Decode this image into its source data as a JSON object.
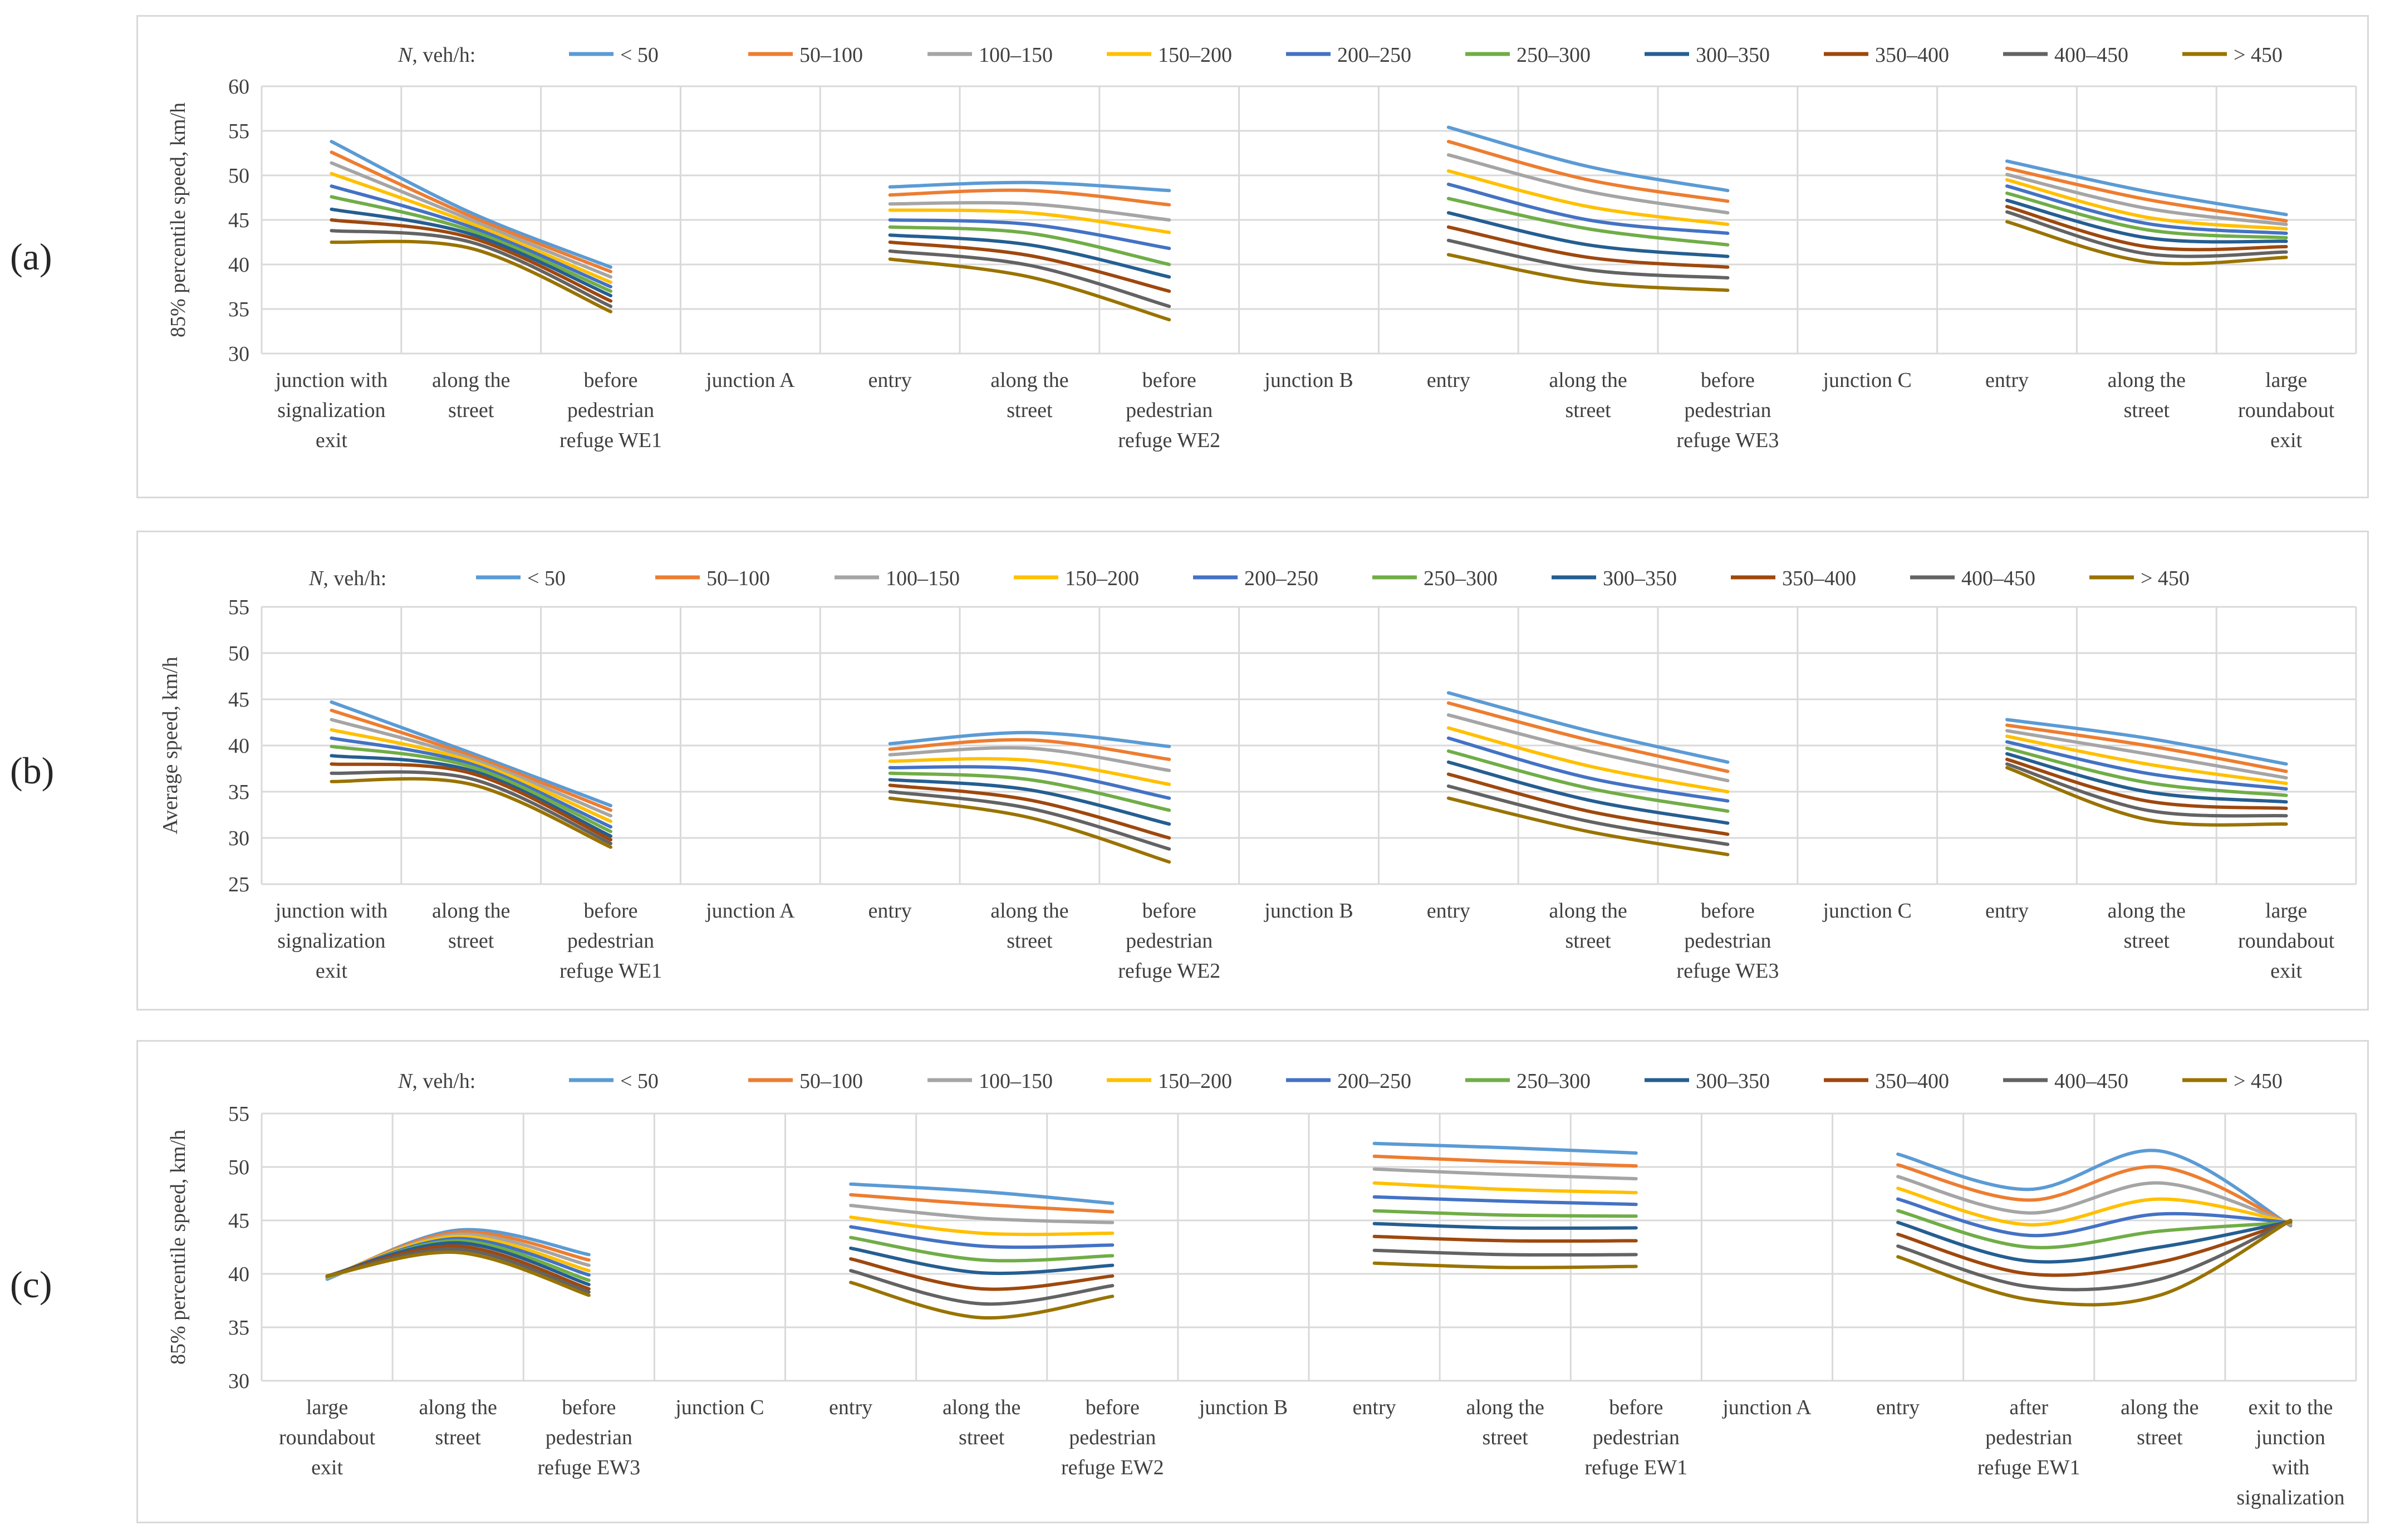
{
  "legend": {
    "title_var": "N",
    "title_unit": ", veh/h:",
    "entries": [
      "< 50",
      "50–100",
      "100–150",
      "150–200",
      "200–250",
      "250–300",
      "300–350",
      "350–400",
      "400–450",
      "> 450"
    ],
    "colors": [
      "#5b9bd5",
      "#ed7d31",
      "#a5a5a5",
      "#ffc000",
      "#4472c4",
      "#70ad47",
      "#255e91",
      "#9e480e",
      "#636363",
      "#997300"
    ]
  },
  "chart_data": [
    {
      "type": "line",
      "panel_label": "(a)",
      "ylabel": "85% percentile speed, km/h",
      "ylim": [
        30,
        60
      ],
      "yticks": [
        30,
        35,
        40,
        45,
        50,
        55,
        60
      ],
      "categories": [
        "junction with signalization exit",
        "along the street",
        "before pedestrian refuge WE1",
        "junction A",
        "entry",
        "along the street",
        "before pedestrian refuge WE2",
        "junction B",
        "entry",
        "along the street",
        "before pedestrian refuge WE3",
        "junction C",
        "entry",
        "along the street",
        "large roundabout exit"
      ],
      "category_lines": [
        [
          "junction with",
          "signalization",
          "exit"
        ],
        [
          "along the",
          "street"
        ],
        [
          "before",
          "pedestrian",
          "refuge WE1"
        ],
        [
          "junction A"
        ],
        [
          "entry"
        ],
        [
          "along the",
          "street"
        ],
        [
          "before",
          "pedestrian",
          "refuge WE2"
        ],
        [
          "junction B"
        ],
        [
          "entry"
        ],
        [
          "along the",
          "street"
        ],
        [
          "before",
          "pedestrian",
          "refuge WE3"
        ],
        [
          "junction C"
        ],
        [
          "entry"
        ],
        [
          "along the",
          "street"
        ],
        [
          "large",
          "roundabout",
          "exit"
        ]
      ],
      "segments": [
        [
          0,
          2
        ],
        [
          4,
          6
        ],
        [
          8,
          10
        ],
        [
          12,
          14
        ]
      ],
      "series": [
        {
          "name": "< 50",
          "values": [
            53.8,
            45.8,
            39.7,
            null,
            48.7,
            49.2,
            48.3,
            null,
            55.4,
            51.0,
            48.3,
            null,
            51.6,
            48.2,
            45.6
          ]
        },
        {
          "name": "50–100",
          "values": [
            52.6,
            45.4,
            39.2,
            null,
            47.8,
            48.3,
            46.7,
            null,
            53.8,
            49.5,
            47.1,
            null,
            50.8,
            47.3,
            44.9
          ]
        },
        {
          "name": "100–150",
          "values": [
            51.4,
            45.0,
            38.6,
            null,
            46.8,
            46.8,
            45.0,
            null,
            52.3,
            48.2,
            45.8,
            null,
            50.1,
            46.3,
            44.5
          ]
        },
        {
          "name": "150–200",
          "values": [
            50.2,
            44.6,
            38.0,
            null,
            46.1,
            45.8,
            43.6,
            null,
            50.5,
            46.5,
            44.5,
            null,
            49.5,
            45.3,
            44.0
          ]
        },
        {
          "name": "200–250",
          "values": [
            48.8,
            44.2,
            37.5,
            null,
            45.0,
            44.5,
            41.8,
            null,
            49.0,
            45.0,
            43.5,
            null,
            48.8,
            44.6,
            43.5
          ]
        },
        {
          "name": "250–300",
          "values": [
            47.6,
            43.8,
            37.0,
            null,
            44.2,
            43.5,
            40.0,
            null,
            47.4,
            44.0,
            42.2,
            null,
            48.0,
            43.9,
            43.0
          ]
        },
        {
          "name": "300–350",
          "values": [
            46.2,
            43.4,
            36.5,
            null,
            43.3,
            42.2,
            38.6,
            null,
            45.8,
            42.2,
            40.9,
            null,
            47.2,
            43.0,
            42.6
          ]
        },
        {
          "name": "350–400",
          "values": [
            45.0,
            43.0,
            35.9,
            null,
            42.5,
            41.0,
            37.0,
            null,
            44.2,
            40.8,
            39.7,
            null,
            46.5,
            42.0,
            42.0
          ]
        },
        {
          "name": "400–450",
          "values": [
            43.8,
            42.5,
            35.3,
            null,
            41.5,
            39.9,
            35.3,
            null,
            42.7,
            39.4,
            38.5,
            null,
            45.9,
            41.2,
            41.4
          ]
        },
        {
          "name": "> 450",
          "values": [
            42.5,
            41.8,
            34.7,
            null,
            40.6,
            38.6,
            33.8,
            null,
            41.1,
            38.0,
            37.1,
            null,
            44.8,
            40.3,
            40.8
          ]
        }
      ]
    },
    {
      "type": "line",
      "panel_label": "(b)",
      "ylabel": "Average speed, km/h",
      "ylim": [
        25,
        55
      ],
      "yticks": [
        25,
        30,
        35,
        40,
        45,
        50,
        55
      ],
      "categories": [
        "junction with signalization exit",
        "along the street",
        "before pedestrian refuge WE1",
        "junction A",
        "entry",
        "along the street",
        "before pedestrian refuge WE2",
        "junction B",
        "entry",
        "along the street",
        "before pedestrian refuge WE3",
        "junction C",
        "entry",
        "along the street",
        "large roundabout exit"
      ],
      "category_lines": [
        [
          "junction with",
          "signalization",
          "exit"
        ],
        [
          "along the",
          "street"
        ],
        [
          "before",
          "pedestrian",
          "refuge WE1"
        ],
        [
          "junction A"
        ],
        [
          "entry"
        ],
        [
          "along the",
          "street"
        ],
        [
          "before",
          "pedestrian",
          "refuge WE2"
        ],
        [
          "junction B"
        ],
        [
          "entry"
        ],
        [
          "along the",
          "street"
        ],
        [
          "before",
          "pedestrian",
          "refuge WE3"
        ],
        [
          "junction C"
        ],
        [
          "entry"
        ],
        [
          "along the",
          "street"
        ],
        [
          "large",
          "roundabout",
          "exit"
        ]
      ],
      "segments": [
        [
          0,
          2
        ],
        [
          4,
          6
        ],
        [
          8,
          10
        ],
        [
          12,
          14
        ]
      ],
      "series": [
        {
          "name": "< 50",
          "values": [
            44.7,
            39.2,
            33.5,
            null,
            40.2,
            41.4,
            39.9,
            null,
            45.7,
            41.6,
            38.2,
            null,
            42.8,
            40.8,
            38.0
          ]
        },
        {
          "name": "50–100",
          "values": [
            43.8,
            38.9,
            33.0,
            null,
            39.6,
            40.6,
            38.5,
            null,
            44.6,
            40.6,
            37.2,
            null,
            42.2,
            40.0,
            37.2
          ]
        },
        {
          "name": "100–150",
          "values": [
            42.8,
            38.6,
            32.4,
            null,
            39.0,
            39.7,
            37.3,
            null,
            43.3,
            39.4,
            36.2,
            null,
            41.6,
            39.1,
            36.5
          ]
        },
        {
          "name": "150–200",
          "values": [
            41.7,
            38.3,
            31.8,
            null,
            38.3,
            38.4,
            35.8,
            null,
            41.9,
            37.8,
            35.0,
            null,
            41.0,
            38.0,
            35.9
          ]
        },
        {
          "name": "200–250",
          "values": [
            40.8,
            38.0,
            31.2,
            null,
            37.6,
            37.4,
            34.3,
            null,
            40.8,
            36.5,
            34.0,
            null,
            40.4,
            37.0,
            35.3
          ]
        },
        {
          "name": "250–300",
          "values": [
            39.9,
            37.7,
            30.7,
            null,
            37.0,
            36.3,
            33.0,
            null,
            39.4,
            35.4,
            32.9,
            null,
            39.7,
            36.0,
            34.6
          ]
        },
        {
          "name": "300–350",
          "values": [
            38.9,
            37.3,
            30.2,
            null,
            36.3,
            35.2,
            31.5,
            null,
            38.2,
            34.1,
            31.6,
            null,
            39.1,
            35.0,
            33.9
          ]
        },
        {
          "name": "350–400",
          "values": [
            38.0,
            37.0,
            29.8,
            null,
            35.7,
            34.1,
            30.0,
            null,
            36.9,
            32.9,
            30.4,
            null,
            38.5,
            34.0,
            33.2
          ]
        },
        {
          "name": "400–450",
          "values": [
            37.0,
            36.4,
            29.4,
            null,
            35.0,
            33.2,
            28.8,
            null,
            35.6,
            31.8,
            29.3,
            null,
            38.0,
            33.0,
            32.4
          ]
        },
        {
          "name": "> 450",
          "values": [
            36.1,
            35.8,
            29.0,
            null,
            34.3,
            32.2,
            27.4,
            null,
            34.3,
            30.7,
            28.2,
            null,
            37.6,
            32.0,
            31.5
          ]
        }
      ]
    },
    {
      "type": "line",
      "panel_label": "(c)",
      "ylabel": "85% percentile speed, km/h",
      "ylim": [
        30,
        55
      ],
      "yticks": [
        30,
        35,
        40,
        45,
        50,
        55
      ],
      "categories": [
        "large roundabout exit",
        "along the street",
        "before pedestrian refuge EW3",
        "junction C",
        "entry",
        "along the street",
        "before pedestrian refuge EW2",
        "junction B",
        "entry",
        "along the street",
        "before pedestrian refuge EW1",
        "junction A",
        "entry",
        "after pedestrian refuge EW1",
        "along the street",
        "exit to the junction with signalization"
      ],
      "category_lines": [
        [
          "large",
          "roundabout",
          "exit"
        ],
        [
          "along the",
          "street"
        ],
        [
          "before",
          "pedestrian",
          "refuge EW3"
        ],
        [
          "junction C"
        ],
        [
          "entry"
        ],
        [
          "along the",
          "street"
        ],
        [
          "before",
          "pedestrian",
          "refuge EW2"
        ],
        [
          "junction B"
        ],
        [
          "entry"
        ],
        [
          "along the",
          "street"
        ],
        [
          "before",
          "pedestrian",
          "refuge EW1"
        ],
        [
          "junction A"
        ],
        [
          "entry"
        ],
        [
          "after",
          "pedestrian",
          "refuge EW1"
        ],
        [
          "along the",
          "street"
        ],
        [
          "exit to the",
          "junction",
          "with",
          "signalization"
        ]
      ],
      "segments": [
        [
          0,
          2
        ],
        [
          4,
          6
        ],
        [
          8,
          10
        ],
        [
          12,
          15
        ]
      ],
      "series": [
        {
          "name": "< 50",
          "values": [
            39.5,
            44.1,
            41.8,
            null,
            48.4,
            47.7,
            46.6,
            null,
            52.2,
            51.8,
            51.3,
            null,
            51.2,
            47.9,
            51.5,
            44.5
          ]
        },
        {
          "name": "50–100",
          "values": [
            39.6,
            43.9,
            41.3,
            null,
            47.4,
            46.5,
            45.8,
            null,
            51.0,
            50.5,
            50.1,
            null,
            50.2,
            46.9,
            50.0,
            44.6
          ]
        },
        {
          "name": "100–150",
          "values": [
            39.6,
            43.7,
            40.8,
            null,
            46.4,
            45.2,
            44.8,
            null,
            49.8,
            49.3,
            48.9,
            null,
            49.1,
            45.7,
            48.5,
            44.7
          ]
        },
        {
          "name": "150–200",
          "values": [
            39.7,
            43.5,
            40.3,
            null,
            45.3,
            43.8,
            43.8,
            null,
            48.5,
            47.9,
            47.6,
            null,
            48.0,
            44.6,
            47.0,
            44.8
          ]
        },
        {
          "name": "200–250",
          "values": [
            39.7,
            43.3,
            39.9,
            null,
            44.4,
            42.6,
            42.7,
            null,
            47.2,
            46.8,
            46.5,
            null,
            47.0,
            43.6,
            45.6,
            44.8
          ]
        },
        {
          "name": "250–300",
          "values": [
            39.7,
            43.1,
            39.4,
            null,
            43.4,
            41.3,
            41.7,
            null,
            45.9,
            45.5,
            45.4,
            null,
            45.9,
            42.5,
            44.0,
            44.8
          ]
        },
        {
          "name": "300–350",
          "values": [
            39.8,
            42.9,
            39.0,
            null,
            42.4,
            40.1,
            40.8,
            null,
            44.7,
            44.3,
            44.3,
            null,
            44.8,
            41.2,
            42.5,
            44.9
          ]
        },
        {
          "name": "350–400",
          "values": [
            39.8,
            42.6,
            38.6,
            null,
            41.4,
            38.6,
            39.8,
            null,
            43.5,
            43.1,
            43.1,
            null,
            43.7,
            40.0,
            41.1,
            44.9
          ]
        },
        {
          "name": "400–450",
          "values": [
            39.8,
            42.3,
            38.3,
            null,
            40.3,
            37.2,
            38.9,
            null,
            42.2,
            41.8,
            41.8,
            null,
            42.6,
            38.8,
            39.5,
            45.0
          ]
        },
        {
          "name": "> 450",
          "values": [
            39.8,
            42.0,
            38.0,
            null,
            39.2,
            35.9,
            37.9,
            null,
            41.0,
            40.6,
            40.7,
            null,
            41.6,
            37.6,
            38.0,
            45.0
          ]
        }
      ]
    }
  ]
}
